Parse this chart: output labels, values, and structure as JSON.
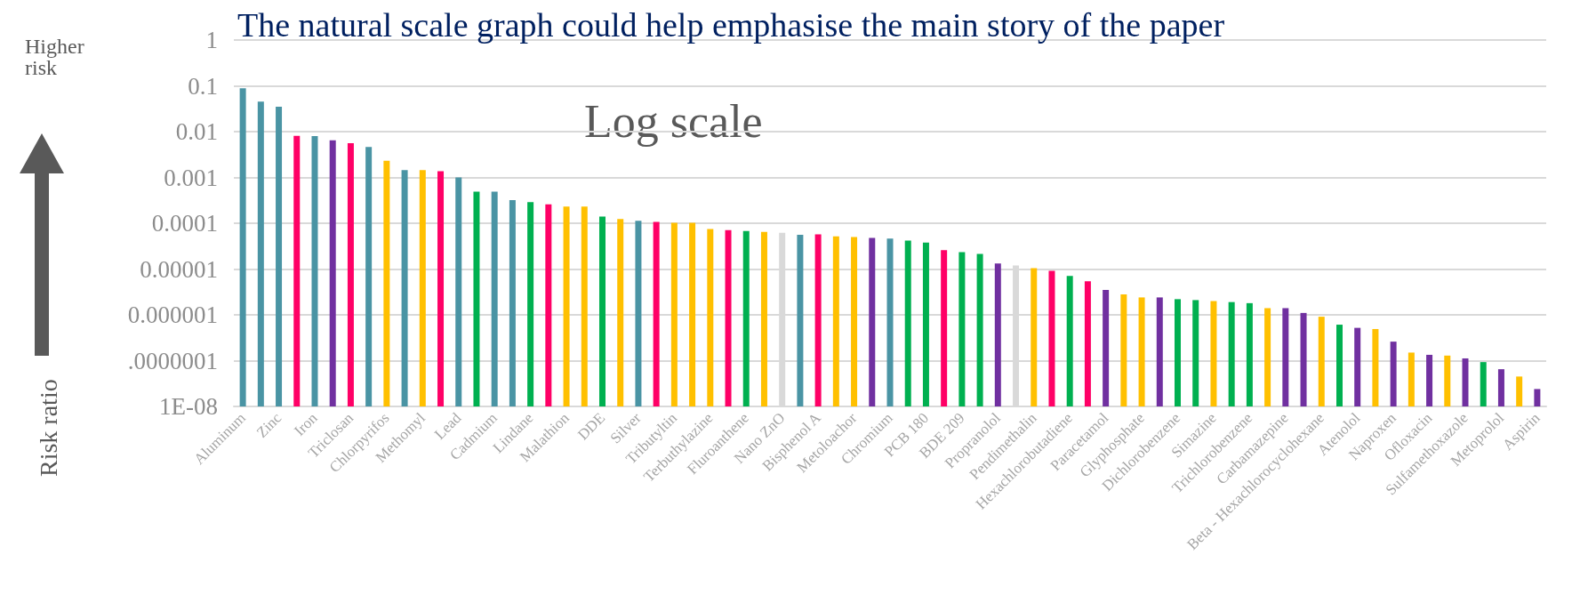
{
  "chart_data": {
    "type": "bar",
    "title": "The natural scale graph could help emphasise the main story of the paper",
    "ylabel": "Risk ratio",
    "annotations": [
      "Log scale",
      "Higher risk"
    ],
    "categories": [
      "Aluminum",
      null,
      "Zinc",
      null,
      "Iron",
      null,
      "Triclosan",
      null,
      "Chlorpyrifos",
      null,
      "Methomyl",
      null,
      "Lead",
      null,
      "Cadmium",
      null,
      "Lindane",
      null,
      "Malathion",
      null,
      "DDE",
      null,
      "Silver",
      null,
      "Tributyltin",
      null,
      "Terbuthylazine",
      null,
      "Fluroanthene",
      null,
      "Nano ZnO",
      null,
      "Bisphenol A",
      null,
      "Metoloachor",
      null,
      "Chromium",
      null,
      "PCB 180",
      null,
      "BDE 209",
      null,
      "Propranolol",
      null,
      "Pendimethalin",
      null,
      "Hexachlorobutadiene",
      null,
      "Paracetamol",
      null,
      "Glyphosphate",
      null,
      "Dichlorobenzene",
      null,
      "Simazine",
      null,
      "Trichlorobenzene",
      null,
      "Carbamazepine",
      null,
      "Beta - Hexachlorocyclohexane",
      null,
      "Atenolol",
      null,
      "Naproxen",
      null,
      "Ofloxacin",
      null,
      "Sulfamethoxazole",
      null,
      "Metoprolol",
      null,
      "Aspirin"
    ],
    "values": [
      0.088,
      0.045,
      0.035,
      0.0081,
      0.008,
      0.0065,
      0.0056,
      0.0046,
      0.0023,
      0.00144,
      0.00144,
      0.00136,
      0.001,
      0.00049,
      0.00049,
      0.00032,
      0.00029,
      0.00026,
      0.00023,
      0.00023,
      0.00014,
      0.000123,
      0.000113,
      0.000107,
      0.000102,
      0.000102,
      7.5e-05,
      7.1e-05,
      6.8e-05,
      6.5e-05,
      6.2e-05,
      5.6e-05,
      5.7e-05,
      5.2e-05,
      5e-05,
      4.8e-05,
      4.6e-05,
      4.2e-05,
      3.8e-05,
      2.6e-05,
      2.34e-05,
      2.14e-05,
      1.32e-05,
      1.2e-05,
      1.05e-05,
      9.1e-06,
      7.1e-06,
      5.4e-06,
      3.5e-06,
      2.8e-06,
      2.4e-06,
      2.4e-06,
      2.2e-06,
      2.1e-06,
      2e-06,
      1.9e-06,
      1.8e-06,
      1.4e-06,
      1.4e-06,
      1.1e-06,
      9.1e-07,
      6.1e-07,
      5.2e-07,
      4.9e-07,
      2.6e-07,
      1.5e-07,
      1.34e-07,
      1.29e-07,
      1.12e-07,
      9.3e-08,
      6.5e-08,
      4.5e-08,
      2.4e-08
    ],
    "colors": [
      "#4a94a4",
      "#4a94a4",
      "#4a94a4",
      "#ff0066",
      "#4a94a4",
      "#7030a0",
      "#ff0066",
      "#4a94a4",
      "#ffc000",
      "#4a94a4",
      "#ffc000",
      "#ff0066",
      "#4a94a4",
      "#00b050",
      "#4a94a4",
      "#4a94a4",
      "#00b050",
      "#ff0066",
      "#ffc000",
      "#ffc000",
      "#00b050",
      "#ffc000",
      "#4a94a4",
      "#ff0066",
      "#ffc000",
      "#ffc000",
      "#ffc000",
      "#ff0066",
      "#00b050",
      "#ffc000",
      "#d9d9d9",
      "#4a94a4",
      "#ff0066",
      "#ffc000",
      "#ffc000",
      "#7030a0",
      "#4a94a4",
      "#00b050",
      "#00b050",
      "#ff0066",
      "#00b050",
      "#00b050",
      "#7030a0",
      "#d9d9d9",
      "#ffc000",
      "#ff0066",
      "#00b050",
      "#ff0066",
      "#7030a0",
      "#ffc000",
      "#ffc000",
      "#7030a0",
      "#00b050",
      "#00b050",
      "#ffc000",
      "#00b050",
      "#00b050",
      "#ffc000",
      "#7030a0",
      "#7030a0",
      "#ffc000",
      "#00b050",
      "#7030a0",
      "#ffc000",
      "#7030a0",
      "#ffc000",
      "#7030a0",
      "#ffc000",
      "#7030a0",
      "#00b050",
      "#7030a0",
      "#ffc000",
      "#7030a0"
    ],
    "log": true,
    "ylim": [
      1e-08,
      1
    ],
    "yticks": [
      1,
      0.1,
      0.01,
      0.001,
      0.0001,
      {
        "value": 1e-05,
        "label": "0.00001"
      },
      {
        "value": 1e-06,
        "label": "0.000001"
      },
      {
        "value": 1e-07,
        "label": ".0000001"
      },
      {
        "value": 1e-08,
        "label": "1E-08"
      }
    ],
    "grid": "y"
  }
}
